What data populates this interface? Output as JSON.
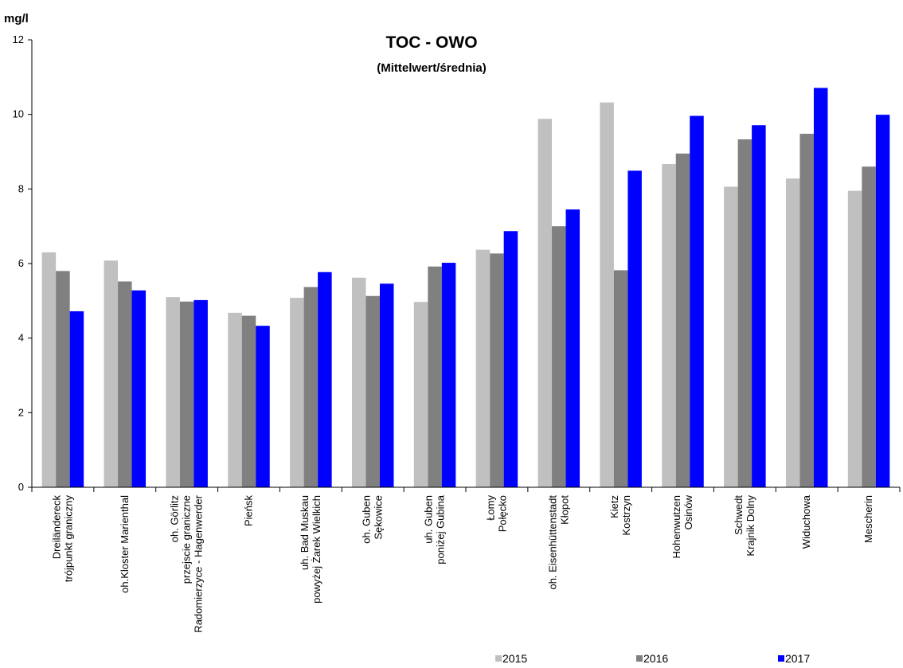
{
  "chart_data": {
    "type": "bar",
    "title": "TOC - OWO",
    "subtitle": "(Mittelwert/średnia)",
    "ylabel": "mg/l",
    "xlabel": "",
    "ylim": [
      0,
      12
    ],
    "yticks": [
      0,
      2,
      4,
      6,
      8,
      10,
      12
    ],
    "grid": false,
    "legend_position": "bottom-right",
    "categories": [
      [
        "Dreiländereck",
        "trójpunkt graniczny"
      ],
      [
        "oh.Kloster Marienthal"
      ],
      [
        "oh. Görlitz",
        "przejscie graniczne",
        "Radomierzyce - Hagenwerder"
      ],
      [
        "Pieńsk"
      ],
      [
        "uh. Bad Muskau",
        "powyżej Żarek Wielkich"
      ],
      [
        "oh. Guben",
        "Sękowice"
      ],
      [
        "uh. Guben",
        "poniżej Gubina"
      ],
      [
        "Łomy",
        "Połęcko"
      ],
      [
        "oh. Eisenhüttenstadt",
        "Kłopot"
      ],
      [
        "Kietz",
        "Kostrzyn"
      ],
      [
        "Hohenwutzen",
        "Osinów"
      ],
      [
        "Schwedt",
        "Krajnik Dolny"
      ],
      [
        "Widuchowa"
      ],
      [
        "Mescherin"
      ]
    ],
    "series": [
      {
        "name": "2015",
        "color": "#c0c0c0",
        "values": [
          6.3,
          6.08,
          5.1,
          4.68,
          5.08,
          5.62,
          4.97,
          6.37,
          9.88,
          10.32,
          8.67,
          8.06,
          8.28,
          7.95
        ]
      },
      {
        "name": "2016",
        "color": "#808080",
        "values": [
          5.8,
          5.52,
          4.98,
          4.6,
          5.37,
          5.13,
          5.92,
          6.27,
          7.0,
          5.82,
          8.95,
          9.33,
          9.48,
          8.6
        ]
      },
      {
        "name": "2017",
        "color": "#0000ff",
        "values": [
          4.72,
          5.28,
          5.02,
          4.33,
          5.77,
          5.46,
          6.02,
          6.87,
          7.45,
          8.49,
          9.96,
          9.71,
          10.71,
          9.99
        ]
      }
    ]
  }
}
